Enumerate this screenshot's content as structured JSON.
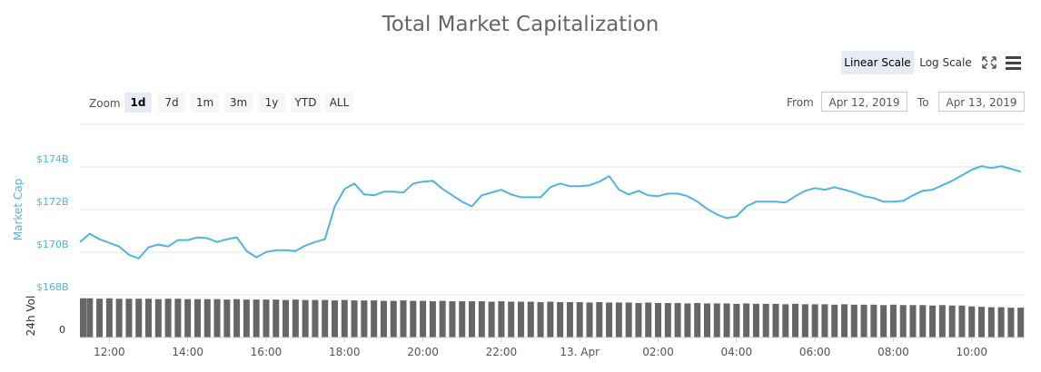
{
  "controls": {
    "scale_buttons": [
      "Linear Scale",
      "Log Scale"
    ],
    "zoom_label": "Zoom",
    "zoom_buttons": [
      "1d",
      "7d",
      "1m",
      "3m",
      "1y",
      "YTD",
      "ALL"
    ],
    "from_label": "From",
    "from_date": "Apr 12, 2019",
    "to_label": "To",
    "to_date": "Apr 13, 2019"
  },
  "chart_data": [
    {
      "type": "line",
      "title": "Total Market Capitalization",
      "ylabel": "Market Cap",
      "color": "#4fb3e6",
      "grid": true,
      "x": [
        11.25,
        11.5,
        11.75,
        12,
        12.25,
        12.5,
        12.75,
        13,
        13.25,
        13.5,
        13.75,
        14,
        14.25,
        14.5,
        14.75,
        15,
        15.25,
        15.5,
        15.75,
        16,
        16.25,
        16.5,
        16.75,
        17,
        17.25,
        17.5,
        17.75,
        18,
        18.25,
        18.5,
        18.75,
        19,
        19.25,
        19.5,
        19.75,
        20,
        20.25,
        20.5,
        20.75,
        21,
        21.25,
        21.5,
        21.75,
        22,
        22.25,
        22.5,
        22.75,
        23,
        23.25,
        23.5,
        23.75,
        24,
        24.25,
        24.5,
        24.75,
        25,
        25.25,
        25.5,
        25.75,
        26,
        26.25,
        26.5,
        26.75,
        27,
        27.25,
        27.5,
        27.75,
        28,
        28.25,
        28.5,
        28.75,
        29,
        29.25,
        29.5,
        29.75,
        30,
        30.25,
        30.5,
        30.75,
        31,
        31.25,
        31.5,
        31.75,
        32,
        32.25,
        32.5,
        32.75,
        33,
        33.25,
        33.5,
        33.75,
        34,
        34.25,
        34.5,
        34.75,
        35,
        35.25
      ],
      "values": [
        170.48,
        170.87,
        170.61,
        170.44,
        170.27,
        169.88,
        169.71,
        170.23,
        170.36,
        170.27,
        170.57,
        170.57,
        170.7,
        170.66,
        170.48,
        170.61,
        170.7,
        170.06,
        169.76,
        170.01,
        170.1,
        170.1,
        170.06,
        170.31,
        170.48,
        170.61,
        172.15,
        172.97,
        173.22,
        172.71,
        172.67,
        172.84,
        172.84,
        172.8,
        173.22,
        173.31,
        173.35,
        172.97,
        172.67,
        172.37,
        172.15,
        172.67,
        172.8,
        172.93,
        172.71,
        172.58,
        172.58,
        172.58,
        173.05,
        173.22,
        173.1,
        173.1,
        173.14,
        173.31,
        173.57,
        172.93,
        172.71,
        172.88,
        172.67,
        172.63,
        172.75,
        172.75,
        172.63,
        172.37,
        172.03,
        171.77,
        171.6,
        171.68,
        172.15,
        172.37,
        172.37,
        172.37,
        172.33,
        172.63,
        172.88,
        173.01,
        172.93,
        173.05,
        172.93,
        172.8,
        172.63,
        172.54,
        172.37,
        172.37,
        172.41,
        172.67,
        172.88,
        172.93,
        173.14,
        173.35,
        173.61,
        173.87,
        174.04,
        173.95,
        174.04,
        173.91,
        173.78
      ],
      "xlim": [
        11.25,
        35.35
      ],
      "xticks": [
        {
          "value": 12,
          "label": "12:00"
        },
        {
          "value": 14,
          "label": "14:00"
        },
        {
          "value": 16,
          "label": "16:00"
        },
        {
          "value": 18,
          "label": "18:00"
        },
        {
          "value": 20,
          "label": "20:00"
        },
        {
          "value": 22,
          "label": "22:00"
        },
        {
          "value": 24,
          "label": "13. Apr"
        },
        {
          "value": 26,
          "label": "02:00"
        },
        {
          "value": 28,
          "label": "04:00"
        },
        {
          "value": 30,
          "label": "06:00"
        },
        {
          "value": 32,
          "label": "08:00"
        },
        {
          "value": 34,
          "label": "10:00"
        }
      ],
      "ylim": [
        168,
        176
      ],
      "yticks": [
        {
          "value": 168,
          "label": "$168B"
        },
        {
          "value": 170,
          "label": "$170B"
        },
        {
          "value": 172,
          "label": "$172B"
        },
        {
          "value": 174,
          "label": "$174B"
        }
      ]
    },
    {
      "type": "bar",
      "ylabel": "24h Vol",
      "color": "#666666",
      "values": [
        92,
        92,
        91,
        92,
        91,
        91,
        91,
        91,
        90,
        91,
        91,
        90,
        90,
        90,
        90,
        89,
        90,
        89,
        89,
        89,
        89,
        88,
        89,
        88,
        88,
        88,
        87,
        88,
        87,
        87,
        87,
        86,
        86,
        87,
        86,
        86,
        85,
        86,
        85,
        85,
        85,
        85,
        84,
        85,
        84,
        84,
        84,
        83,
        84,
        83,
        83,
        83,
        82,
        83,
        82,
        82,
        82,
        81,
        82,
        81,
        81,
        81,
        80,
        81,
        80,
        80,
        80,
        79,
        80,
        79,
        79,
        79,
        78,
        79,
        78,
        78,
        78,
        77,
        78,
        77,
        77,
        77,
        76,
        77,
        76,
        76,
        76,
        75,
        76,
        75,
        75,
        73,
        72,
        71,
        71,
        70,
        70
      ],
      "ylim": [
        0,
        100
      ],
      "yticks": [
        0
      ]
    }
  ]
}
